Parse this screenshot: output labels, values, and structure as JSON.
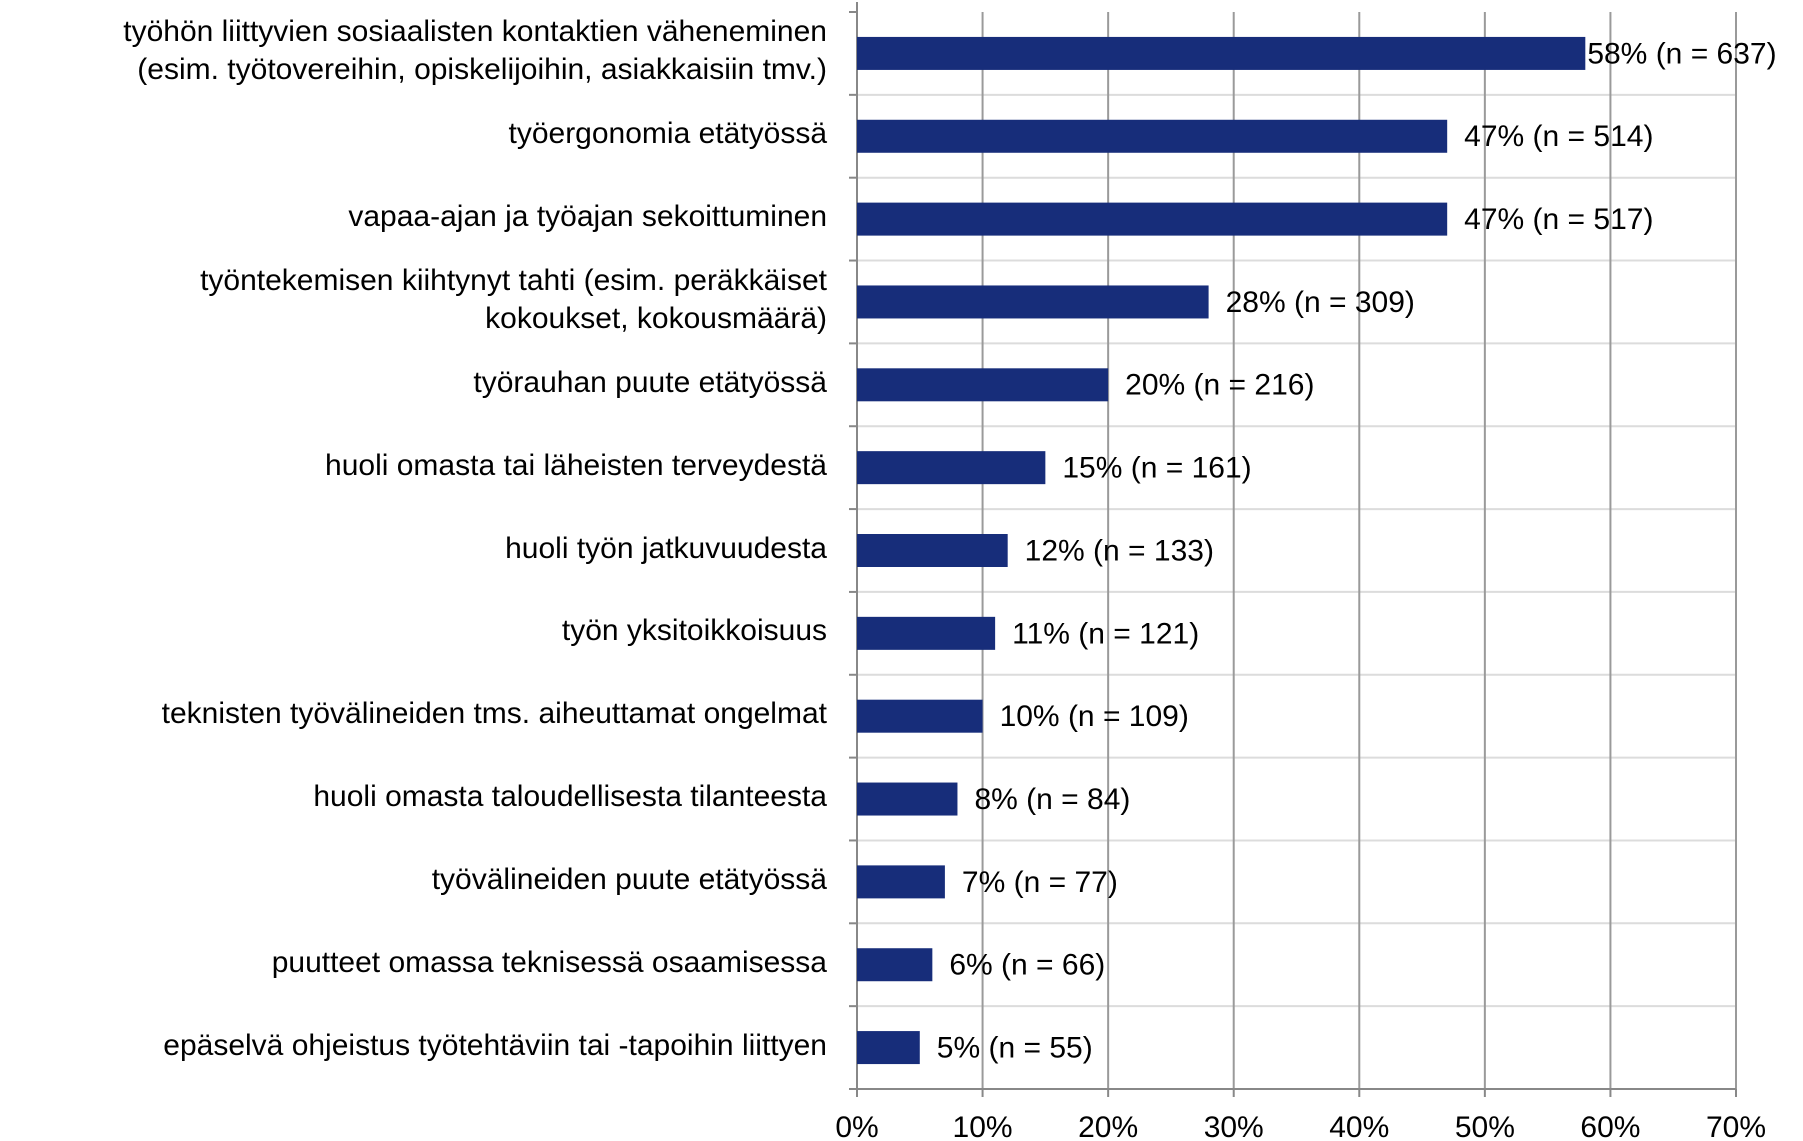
{
  "chart_data": {
    "type": "barh",
    "categories": [
      "työhön liittyvien sosiaalisten kontaktien väheneminen\n(esim. työtovereihin, opiskelijoihin, asiakkaisiin tmv.)",
      "työergonomia etätyössä",
      "vapaa-ajan ja työajan sekoittuminen",
      "työntekemisen kiihtynyt tahti (esim. peräkkäiset\nkokoukset, kokousmäärä)",
      "työrauhan puute etätyössä",
      "huoli omasta tai läheisten terveydestä",
      "huoli työn jatkuvuudesta",
      "työn yksitoikkoisuus",
      "teknisten työvälineiden tms. aiheuttamat ongelmat",
      "huoli omasta taloudellisesta tilanteesta",
      "työvälineiden puute etätyössä",
      "puutteet omassa teknisessä osaamisessa",
      "epäselvä ohjeistus työtehtäviin tai -tapoihin liittyen"
    ],
    "values": [
      58,
      47,
      47,
      28,
      20,
      15,
      12,
      11,
      10,
      8,
      7,
      6,
      5
    ],
    "value_labels": [
      "58% (n = 637)",
      "47% (n = 514)",
      "47% (n = 517)",
      "28% (n = 309)",
      "20% (n = 216)",
      "15% (n = 161)",
      "12% (n = 133)",
      "11% (n = 121)",
      "10% (n = 109)",
      "8% (n = 84)",
      "7% (n = 77)",
      "6% (n = 66)",
      "5% (n = 55)"
    ],
    "color": "#172d7a",
    "xlim": [
      0,
      70
    ],
    "xticks": [
      {
        "value": 0,
        "label": "0%"
      },
      {
        "value": 10,
        "label": "10%"
      },
      {
        "value": 20,
        "label": "20%"
      },
      {
        "value": 30,
        "label": "30%"
      },
      {
        "value": 40,
        "label": "40%"
      },
      {
        "value": 50,
        "label": "50%"
      },
      {
        "value": 60,
        "label": "60%"
      },
      {
        "value": 70,
        "label": "70%"
      }
    ],
    "grid": true
  }
}
